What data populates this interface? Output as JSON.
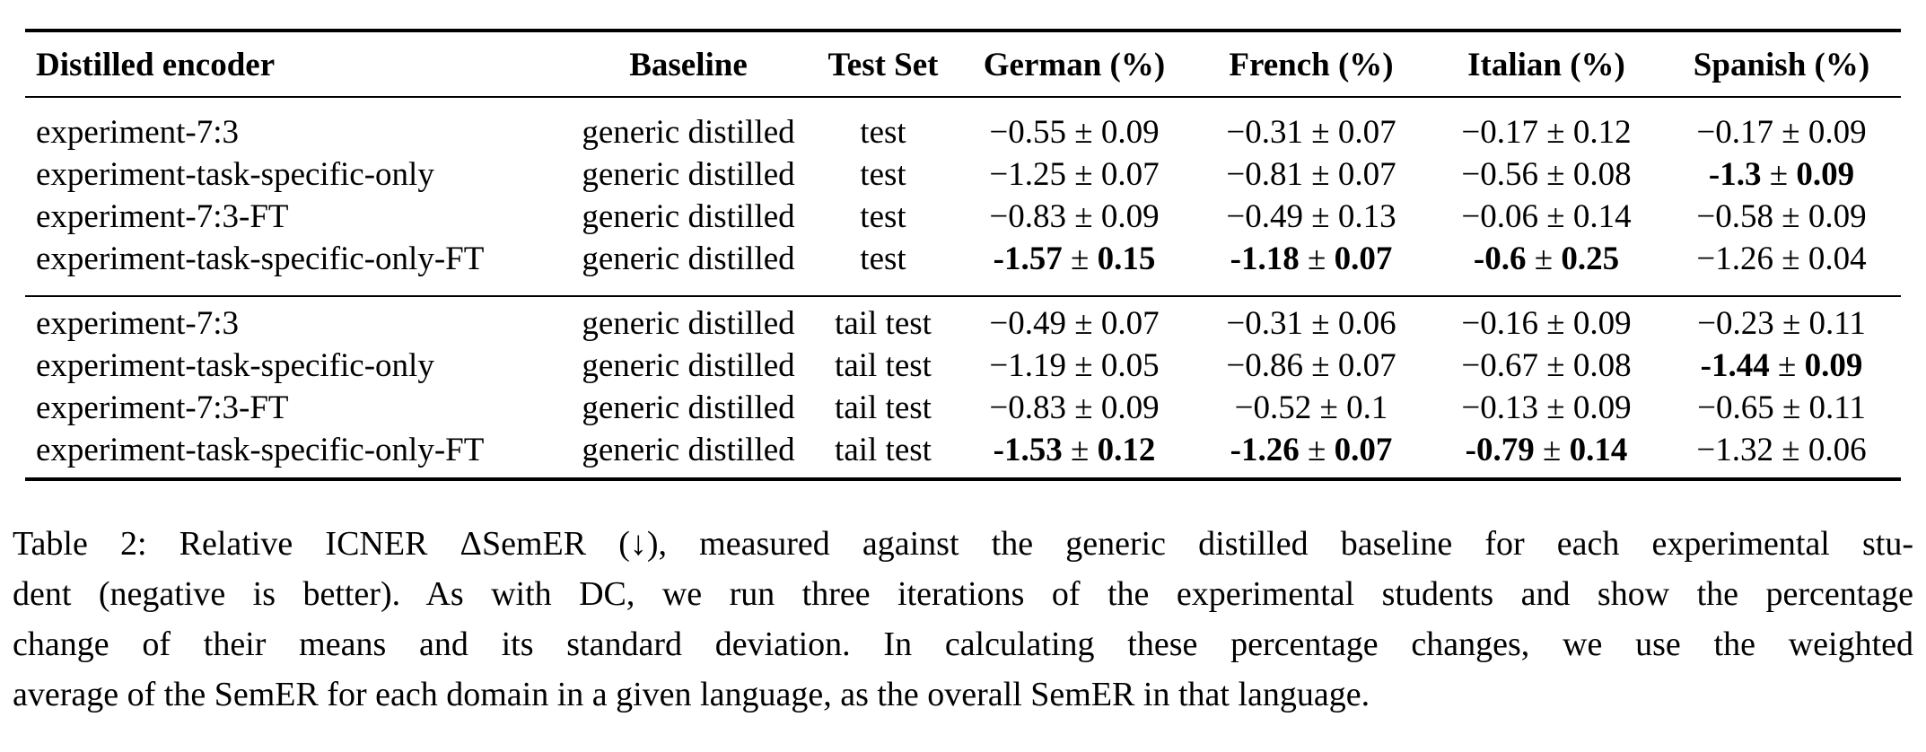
{
  "table": {
    "headers": {
      "encoder": "Distilled encoder",
      "baseline": "Baseline",
      "test_set": "Test Set",
      "german": "German (%)",
      "french": "French (%)",
      "italian": "Italian (%)",
      "spanish": "Spanish (%)"
    },
    "rows": [
      {
        "encoder": "experiment-7:3",
        "baseline": "generic distilled",
        "test_set": "test",
        "german": {
          "mean": "−0.55",
          "pm": " ± ",
          "sd": "0.09"
        },
        "french": {
          "mean": "−0.31",
          "pm": " ± ",
          "sd": "0.07"
        },
        "italian": {
          "mean": "−0.17",
          "pm": " ± ",
          "sd": "0.12"
        },
        "spanish": {
          "mean": "−0.17",
          "pm": " ± ",
          "sd": "0.09"
        }
      },
      {
        "encoder": "experiment-task-specific-only",
        "baseline": "generic distilled",
        "test_set": "test",
        "german": {
          "mean": "−1.25",
          "pm": " ± ",
          "sd": "0.07"
        },
        "french": {
          "mean": "−0.81",
          "pm": " ± ",
          "sd": "0.07"
        },
        "italian": {
          "mean": "−0.56",
          "pm": " ± ",
          "sd": "0.08"
        },
        "spanish": {
          "mean": "-1.3",
          "pm": " ± ",
          "sd": "0.09"
        }
      },
      {
        "encoder": "experiment-7:3-FT",
        "baseline": "generic distilled",
        "test_set": "test",
        "german": {
          "mean": "−0.83",
          "pm": " ± ",
          "sd": "0.09"
        },
        "french": {
          "mean": "−0.49",
          "pm": " ± ",
          "sd": "0.13"
        },
        "italian": {
          "mean": "−0.06",
          "pm": " ± ",
          "sd": "0.14"
        },
        "spanish": {
          "mean": "−0.58",
          "pm": " ± ",
          "sd": "0.09"
        }
      },
      {
        "encoder": "experiment-task-specific-only-FT",
        "baseline": "generic distilled",
        "test_set": "test",
        "german": {
          "mean": "-1.57",
          "pm": " ± ",
          "sd": "0.15"
        },
        "french": {
          "mean": "-1.18",
          "pm": " ± ",
          "sd": "0.07"
        },
        "italian": {
          "mean": "-0.6",
          "pm": " ± ",
          "sd": "0.25"
        },
        "spanish": {
          "mean": "−1.26",
          "pm": " ± ",
          "sd": "0.04"
        }
      },
      {
        "encoder": "experiment-7:3",
        "baseline": "generic distilled",
        "test_set": "tail test",
        "german": {
          "mean": "−0.49",
          "pm": " ± ",
          "sd": "0.07"
        },
        "french": {
          "mean": "−0.31",
          "pm": " ± ",
          "sd": "0.06"
        },
        "italian": {
          "mean": "−0.16",
          "pm": " ± ",
          "sd": "0.09"
        },
        "spanish": {
          "mean": "−0.23",
          "pm": " ± ",
          "sd": "0.11"
        }
      },
      {
        "encoder": "experiment-task-specific-only",
        "baseline": "generic distilled",
        "test_set": "tail test",
        "german": {
          "mean": "−1.19",
          "pm": " ± ",
          "sd": "0.05"
        },
        "french": {
          "mean": "−0.86",
          "pm": " ± ",
          "sd": "0.07"
        },
        "italian": {
          "mean": "−0.67",
          "pm": " ± ",
          "sd": "0.08"
        },
        "spanish": {
          "mean": "-1.44",
          "pm": " ± ",
          "sd": "0.09"
        }
      },
      {
        "encoder": "experiment-7:3-FT",
        "baseline": "generic distilled",
        "test_set": "tail test",
        "german": {
          "mean": "−0.83",
          "pm": " ± ",
          "sd": "0.09"
        },
        "french": {
          "mean": "−0.52",
          "pm": " ± ",
          "sd": "0.1"
        },
        "italian": {
          "mean": "−0.13",
          "pm": " ± ",
          "sd": "0.09"
        },
        "spanish": {
          "mean": "−0.65",
          "pm": " ± ",
          "sd": "0.11"
        }
      },
      {
        "encoder": "experiment-task-specific-only-FT",
        "baseline": "generic distilled",
        "test_set": "tail test",
        "german": {
          "mean": "-1.53",
          "pm": " ± ",
          "sd": "0.12"
        },
        "french": {
          "mean": "-1.26",
          "pm": " ± ",
          "sd": "0.07"
        },
        "italian": {
          "mean": "-0.79",
          "pm": " ± ",
          "sd": "0.14"
        },
        "spanish": {
          "mean": "−1.32",
          "pm": " ± ",
          "sd": "0.06"
        }
      }
    ]
  },
  "caption": {
    "line1": "Table 2: Relative ICNER ΔSemER (↓), measured against the generic distilled baseline for each experimental stu-",
    "line2": "dent (negative is better). As with DC, we run three iterations of the experimental students and show the percentage",
    "line3": "change of their means and its standard deviation. In calculating these percentage changes, we use the weighted",
    "line4": "average of the SemER for each domain in a given language, as the overall SemER in that language."
  }
}
